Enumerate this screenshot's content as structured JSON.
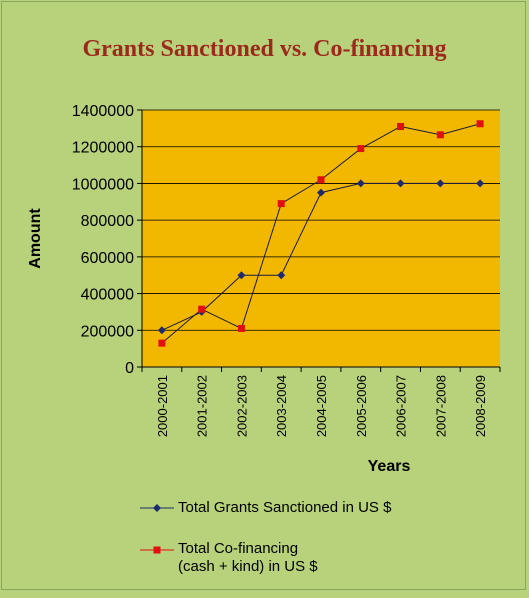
{
  "chart_data": {
    "type": "line",
    "title": "Grants Sanctioned vs. Co-financing",
    "xlabel": "Years",
    "ylabel": "Amount",
    "categories": [
      "2000-2001",
      "2001-2002",
      "2002-2003",
      "2003-2004",
      "2004-2005",
      "2005-2006",
      "2006-2007",
      "2007-2008",
      "2008-2009"
    ],
    "ylim": [
      0,
      1400000
    ],
    "yticks": [
      "0",
      "200000",
      "400000",
      "600000",
      "800000",
      "1000000",
      "1200000",
      "1400000"
    ],
    "grid": true,
    "legend_position": "bottom",
    "plot_background": "#f2b800",
    "page_background": "#b7d27a",
    "series": [
      {
        "name": "Total Grants Sanctioned in US $",
        "color": "#1f2a6b",
        "marker": "diamond",
        "values": [
          200000,
          300000,
          500000,
          500000,
          950000,
          1000000,
          1000000,
          1000000,
          1000000
        ]
      },
      {
        "name": "Total Co-financing",
        "name_line2": "(cash + kind) in US $",
        "color": "#e01010",
        "marker": "square",
        "values": [
          130000,
          315000,
          210000,
          890000,
          1020000,
          1190000,
          1310000,
          1265000,
          1325000
        ]
      }
    ]
  }
}
